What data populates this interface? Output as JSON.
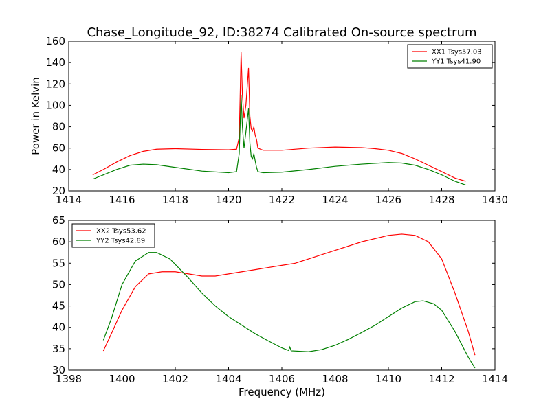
{
  "chart_data": [
    {
      "type": "line",
      "title": "Chase_Longitude_92, ID:38274 Calibrated On-source spectrum",
      "xlabel": "",
      "ylabel": "Power in Kelvin",
      "xlim": [
        1414,
        1430
      ],
      "ylim": [
        20,
        160
      ],
      "xticks": [
        "1414",
        "1416",
        "1418",
        "1420",
        "1422",
        "1424",
        "1426",
        "1428",
        "1430"
      ],
      "yticks": [
        "20",
        "40",
        "60",
        "80",
        "100",
        "120",
        "140",
        "160"
      ],
      "legend_position": "top-right",
      "grid": false,
      "series": [
        {
          "name": "XX1 Tsys57.03",
          "color": "#ff0000",
          "points": [
            [
              1414.9,
              35
            ],
            [
              1415.3,
              40
            ],
            [
              1415.8,
              47
            ],
            [
              1416.3,
              53
            ],
            [
              1416.8,
              57
            ],
            [
              1417.3,
              59
            ],
            [
              1418.0,
              59.5
            ],
            [
              1419.0,
              58.8
            ],
            [
              1420.0,
              58.5
            ],
            [
              1420.3,
              59
            ],
            [
              1420.4,
              70
            ],
            [
              1420.47,
              150
            ],
            [
              1420.52,
              110
            ],
            [
              1420.58,
              88
            ],
            [
              1420.65,
              100
            ],
            [
              1420.75,
              135
            ],
            [
              1420.8,
              90
            ],
            [
              1420.85,
              78
            ],
            [
              1420.9,
              76
            ],
            [
              1420.95,
              80
            ],
            [
              1421.0,
              72
            ],
            [
              1421.05,
              68
            ],
            [
              1421.1,
              60
            ],
            [
              1421.3,
              58
            ],
            [
              1422.0,
              58
            ],
            [
              1423.0,
              60
            ],
            [
              1424.0,
              61
            ],
            [
              1425.0,
              60.5
            ],
            [
              1425.5,
              59.5
            ],
            [
              1426.0,
              58
            ],
            [
              1426.5,
              55
            ],
            [
              1427.0,
              50
            ],
            [
              1427.5,
              44
            ],
            [
              1428.0,
              38
            ],
            [
              1428.5,
              32
            ],
            [
              1428.9,
              29
            ]
          ]
        },
        {
          "name": "YY1 Tsys41.90",
          "color": "#008000",
          "points": [
            [
              1414.9,
              31
            ],
            [
              1415.3,
              35
            ],
            [
              1415.8,
              40
            ],
            [
              1416.3,
              44
            ],
            [
              1416.8,
              45
            ],
            [
              1417.3,
              44.5
            ],
            [
              1418.0,
              42
            ],
            [
              1419.0,
              38.5
            ],
            [
              1420.0,
              37
            ],
            [
              1420.3,
              38
            ],
            [
              1420.4,
              55
            ],
            [
              1420.47,
              110
            ],
            [
              1420.52,
              80
            ],
            [
              1420.58,
              60
            ],
            [
              1420.65,
              75
            ],
            [
              1420.75,
              97
            ],
            [
              1420.8,
              65
            ],
            [
              1420.85,
              52
            ],
            [
              1420.9,
              50
            ],
            [
              1420.95,
              55
            ],
            [
              1421.0,
              48
            ],
            [
              1421.05,
              42
            ],
            [
              1421.1,
              38
            ],
            [
              1421.3,
              37
            ],
            [
              1422.0,
              37.5
            ],
            [
              1423.0,
              40
            ],
            [
              1424.0,
              43
            ],
            [
              1425.0,
              45
            ],
            [
              1426.0,
              46.5
            ],
            [
              1426.5,
              46
            ],
            [
              1427.0,
              44
            ],
            [
              1427.5,
              40
            ],
            [
              1428.0,
              35
            ],
            [
              1428.5,
              29
            ],
            [
              1428.9,
              25.5
            ]
          ]
        }
      ]
    },
    {
      "type": "line",
      "title": "",
      "xlabel": "Frequency (MHz)",
      "ylabel": "",
      "xlim": [
        1398,
        1414
      ],
      "ylim": [
        30,
        65
      ],
      "xticks": [
        "1398",
        "1400",
        "1402",
        "1404",
        "1406",
        "1408",
        "1410",
        "1412",
        "1414"
      ],
      "yticks": [
        "30",
        "35",
        "40",
        "45",
        "50",
        "55",
        "60",
        "65"
      ],
      "legend_position": "top-left",
      "grid": false,
      "series": [
        {
          "name": "XX2 Tsys53.62",
          "color": "#ff0000",
          "points": [
            [
              1399.3,
              34.5
            ],
            [
              1399.6,
              38.5
            ],
            [
              1400.0,
              44
            ],
            [
              1400.5,
              49.5
            ],
            [
              1401.0,
              52.5
            ],
            [
              1401.5,
              53
            ],
            [
              1402.0,
              53
            ],
            [
              1402.5,
              52.5
            ],
            [
              1403.0,
              52
            ],
            [
              1403.5,
              52
            ],
            [
              1404.0,
              52.5
            ],
            [
              1404.5,
              53
            ],
            [
              1405.0,
              53.5
            ],
            [
              1406.0,
              54.5
            ],
            [
              1406.5,
              55
            ],
            [
              1407.0,
              56
            ],
            [
              1408.0,
              58
            ],
            [
              1409.0,
              60
            ],
            [
              1410.0,
              61.5
            ],
            [
              1410.5,
              61.8
            ],
            [
              1411.0,
              61.5
            ],
            [
              1411.5,
              60
            ],
            [
              1412.0,
              56
            ],
            [
              1412.5,
              48
            ],
            [
              1413.0,
              39
            ],
            [
              1413.25,
              33.5
            ]
          ]
        },
        {
          "name": "YY2 Tsys42.89",
          "color": "#008000",
          "points": [
            [
              1399.3,
              37
            ],
            [
              1399.6,
              42
            ],
            [
              1400.0,
              50
            ],
            [
              1400.5,
              55.5
            ],
            [
              1401.0,
              57.5
            ],
            [
              1401.3,
              57.5
            ],
            [
              1401.8,
              56
            ],
            [
              1402.5,
              51.5
            ],
            [
              1403.0,
              48
            ],
            [
              1403.5,
              45
            ],
            [
              1404.0,
              42.5
            ],
            [
              1404.5,
              40.5
            ],
            [
              1405.0,
              38.5
            ],
            [
              1405.5,
              36.8
            ],
            [
              1406.0,
              35.2
            ],
            [
              1406.25,
              34.6
            ],
            [
              1406.3,
              35.4
            ],
            [
              1406.35,
              34.5
            ],
            [
              1407.0,
              34.3
            ],
            [
              1407.5,
              34.8
            ],
            [
              1408.0,
              35.8
            ],
            [
              1408.5,
              37.2
            ],
            [
              1409.0,
              38.8
            ],
            [
              1409.5,
              40.5
            ],
            [
              1410.0,
              42.5
            ],
            [
              1410.5,
              44.5
            ],
            [
              1411.0,
              46
            ],
            [
              1411.3,
              46.2
            ],
            [
              1411.7,
              45.5
            ],
            [
              1412.0,
              44
            ],
            [
              1412.5,
              39
            ],
            [
              1413.0,
              33
            ],
            [
              1413.25,
              30.5
            ]
          ]
        }
      ]
    }
  ]
}
